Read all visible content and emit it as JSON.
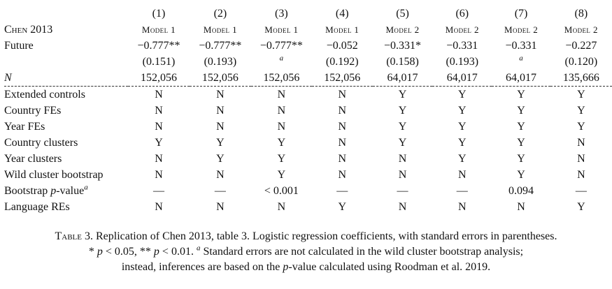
{
  "table": {
    "column_numbers": [
      "(1)",
      "(2)",
      "(3)",
      "(4)",
      "(5)",
      "(6)",
      "(7)",
      "(8)"
    ],
    "model_header_label": "Chen 2013",
    "models": [
      "Model 1",
      "Model 1",
      "Model 1",
      "Model 1",
      "Model 2",
      "Model 2",
      "Model 2",
      "Model 2"
    ],
    "future": {
      "label": "Future",
      "coefficients": [
        "−0.777**",
        "−0.777**",
        "−0.777**",
        "−0.052",
        "−0.331*",
        "−0.331",
        "−0.331",
        "−0.227"
      ],
      "std_errors": [
        "(0.151)",
        "(0.193)",
        "a",
        "(0.192)",
        "(0.158)",
        "(0.193)",
        "a",
        "(0.120)"
      ]
    },
    "n": {
      "label": "N",
      "values": [
        "152,056",
        "152,056",
        "152,056",
        "152,056",
        "64,017",
        "64,017",
        "64,017",
        "135,666"
      ]
    },
    "spec_rows": [
      {
        "label": "Extended controls",
        "values": [
          "N",
          "N",
          "N",
          "N",
          "Y",
          "Y",
          "Y",
          "Y"
        ]
      },
      {
        "label": "Country FEs",
        "values": [
          "N",
          "N",
          "N",
          "N",
          "Y",
          "Y",
          "Y",
          "Y"
        ]
      },
      {
        "label": "Year FEs",
        "values": [
          "N",
          "N",
          "N",
          "N",
          "Y",
          "Y",
          "Y",
          "Y"
        ]
      },
      {
        "label": "Country clusters",
        "values": [
          "Y",
          "Y",
          "Y",
          "N",
          "Y",
          "Y",
          "Y",
          "N"
        ]
      },
      {
        "label": "Year clusters",
        "values": [
          "N",
          "Y",
          "Y",
          "N",
          "N",
          "Y",
          "Y",
          "N"
        ]
      },
      {
        "label": "Wild cluster bootstrap",
        "values": [
          "N",
          "N",
          "Y",
          "N",
          "N",
          "N",
          "Y",
          "N"
        ]
      }
    ],
    "bootstrap": {
      "label_main": "Bootstrap ",
      "label_italic": "p",
      "label_rest": "-value",
      "label_sup": "a",
      "values": [
        "—",
        "—",
        "< 0.001",
        "—",
        "—",
        "—",
        "0.094",
        "—"
      ]
    },
    "language": {
      "label": "Language REs",
      "values": [
        "N",
        "N",
        "N",
        "Y",
        "N",
        "N",
        "N",
        "Y"
      ]
    }
  },
  "caption": {
    "table_word": "Table",
    "number": " 3.",
    "line1_rest": " Replication of Chen 2013, table 3. Logistic regression coefficients, with standard errors in parentheses.",
    "sig1_stars": "* ",
    "sig1_p": "p",
    "sig1_rest": " < 0.05, ** ",
    "sig2_p": "p",
    "sig2_rest": " < 0.01. ",
    "note_sup": "a",
    "note_rest": " Standard errors are not calculated in the wild cluster bootstrap analysis;",
    "line3_a": "instead, inferences are based on the ",
    "line3_p": "p",
    "line3_b": "-value calculated using Roodman et al. 2019."
  }
}
